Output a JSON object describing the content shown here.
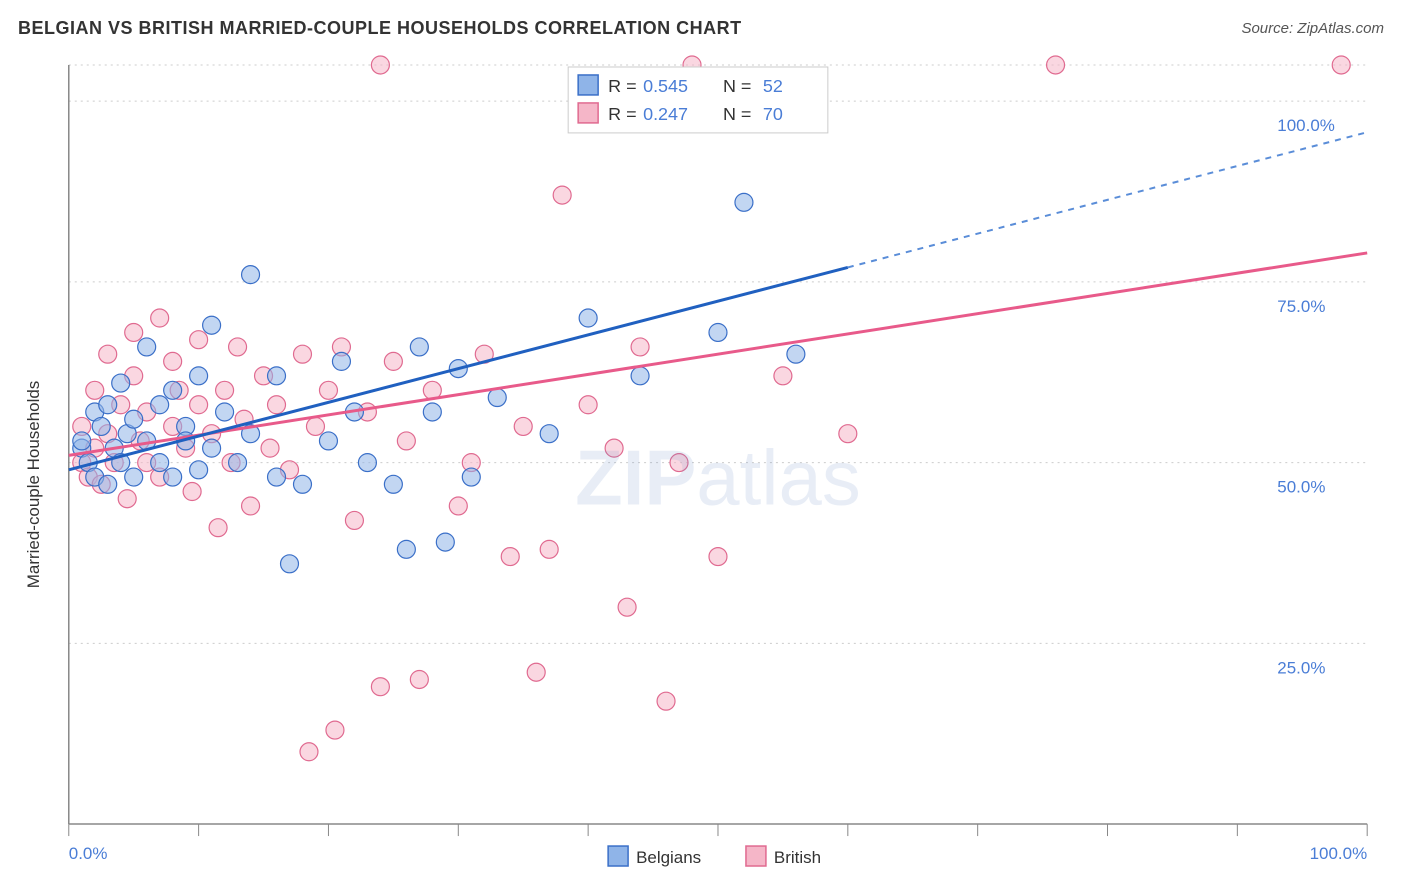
{
  "title": "BELGIAN VS BRITISH MARRIED-COUPLE HOUSEHOLDS CORRELATION CHART",
  "source": "Source: ZipAtlas.com",
  "y_axis_title": "Married-couple Households",
  "watermark": "ZIPatlas",
  "chart": {
    "type": "scatter-with-trend",
    "background_color": "#ffffff",
    "grid_color": "#cccccc",
    "axis_color": "#888888",
    "x_range": [
      0,
      100
    ],
    "y_range": [
      0,
      105
    ],
    "x_ticks": [
      0,
      10,
      20,
      30,
      40,
      50,
      60,
      70,
      80,
      90,
      100
    ],
    "x_tick_labels": {
      "0": "0.0%",
      "100": "100.0%"
    },
    "y_gridlines": [
      25,
      50,
      75,
      100,
      105
    ],
    "y_tick_labels": {
      "25": "25.0%",
      "50": "50.0%",
      "75": "75.0%",
      "100": "100.0%"
    },
    "tick_label_color": "#4a7dd6",
    "tick_label_fontsize": 17,
    "marker_radius": 9,
    "series": [
      {
        "name": "Belgians",
        "color_fill": "#8fb4e8",
        "color_stroke": "#3a6fc8",
        "trend_color": "#2060c0",
        "trend_dash_color": "#5a8dd8",
        "R": "0.545",
        "N": "52",
        "trend": {
          "x1": 0,
          "y1": 49,
          "x2": 60,
          "y2": 77,
          "x2_ext": 100,
          "y2_ext": 95.7
        },
        "points": [
          [
            1,
            52
          ],
          [
            1,
            53
          ],
          [
            1.5,
            50
          ],
          [
            2,
            48
          ],
          [
            2,
            57
          ],
          [
            2.5,
            55
          ],
          [
            3,
            47
          ],
          [
            3,
            58
          ],
          [
            3.5,
            52
          ],
          [
            4,
            50
          ],
          [
            4,
            61
          ],
          [
            4.5,
            54
          ],
          [
            5,
            48
          ],
          [
            5,
            56
          ],
          [
            6,
            53
          ],
          [
            6,
            66
          ],
          [
            7,
            50
          ],
          [
            7,
            58
          ],
          [
            8,
            60
          ],
          [
            8,
            48
          ],
          [
            9,
            55
          ],
          [
            9,
            53
          ],
          [
            10,
            49
          ],
          [
            10,
            62
          ],
          [
            11,
            69
          ],
          [
            11,
            52
          ],
          [
            12,
            57
          ],
          [
            13,
            50
          ],
          [
            14,
            76
          ],
          [
            14,
            54
          ],
          [
            16,
            48
          ],
          [
            16,
            62
          ],
          [
            17,
            36
          ],
          [
            18,
            47
          ],
          [
            20,
            53
          ],
          [
            21,
            64
          ],
          [
            22,
            57
          ],
          [
            23,
            50
          ],
          [
            25,
            47
          ],
          [
            26,
            38
          ],
          [
            27,
            66
          ],
          [
            28,
            57
          ],
          [
            29,
            39
          ],
          [
            30,
            63
          ],
          [
            31,
            48
          ],
          [
            33,
            59
          ],
          [
            37,
            54
          ],
          [
            40,
            70
          ],
          [
            44,
            62
          ],
          [
            50,
            68
          ],
          [
            52,
            86
          ],
          [
            56,
            65
          ]
        ]
      },
      {
        "name": "British",
        "color_fill": "#f5b6c8",
        "color_stroke": "#e06a90",
        "trend_color": "#e85a8a",
        "R": "0.247",
        "N": "70",
        "trend": {
          "x1": 0,
          "y1": 51,
          "x2": 100,
          "y2": 79
        },
        "points": [
          [
            1,
            55
          ],
          [
            1,
            50
          ],
          [
            1.5,
            48
          ],
          [
            2,
            60
          ],
          [
            2,
            52
          ],
          [
            2.5,
            47
          ],
          [
            3,
            65
          ],
          [
            3,
            54
          ],
          [
            3.5,
            50
          ],
          [
            4,
            58
          ],
          [
            4.5,
            45
          ],
          [
            5,
            62
          ],
          [
            5,
            68
          ],
          [
            5.5,
            53
          ],
          [
            6,
            50
          ],
          [
            6,
            57
          ],
          [
            7,
            70
          ],
          [
            7,
            48
          ],
          [
            8,
            55
          ],
          [
            8,
            64
          ],
          [
            8.5,
            60
          ],
          [
            9,
            52
          ],
          [
            9.5,
            46
          ],
          [
            10,
            58
          ],
          [
            10,
            67
          ],
          [
            11,
            54
          ],
          [
            11.5,
            41
          ],
          [
            12,
            60
          ],
          [
            12.5,
            50
          ],
          [
            13,
            66
          ],
          [
            13.5,
            56
          ],
          [
            14,
            44
          ],
          [
            15,
            62
          ],
          [
            15.5,
            52
          ],
          [
            16,
            58
          ],
          [
            17,
            49
          ],
          [
            18,
            65
          ],
          [
            18.5,
            10
          ],
          [
            19,
            55
          ],
          [
            20,
            60
          ],
          [
            20.5,
            13
          ],
          [
            21,
            66
          ],
          [
            22,
            42
          ],
          [
            23,
            57
          ],
          [
            24,
            19
          ],
          [
            25,
            64
          ],
          [
            26,
            53
          ],
          [
            27,
            20
          ],
          [
            28,
            60
          ],
          [
            30,
            44
          ],
          [
            31,
            50
          ],
          [
            32,
            65
          ],
          [
            34,
            37
          ],
          [
            35,
            55
          ],
          [
            36,
            21
          ],
          [
            37,
            38
          ],
          [
            38,
            87
          ],
          [
            40,
            58
          ],
          [
            42,
            52
          ],
          [
            43,
            30
          ],
          [
            44,
            66
          ],
          [
            46,
            17
          ],
          [
            47,
            50
          ],
          [
            48,
            105
          ],
          [
            50,
            37
          ],
          [
            55,
            62
          ],
          [
            60,
            54
          ],
          [
            76,
            105
          ],
          [
            98,
            105
          ],
          [
            24,
            105
          ]
        ]
      }
    ]
  },
  "legend_top": {
    "rows": [
      {
        "swatch_fill": "#8fb4e8",
        "swatch_stroke": "#3a6fc8",
        "r_label": "R =",
        "r_val": "0.545",
        "n_label": "N =",
        "n_val": "52"
      },
      {
        "swatch_fill": "#f5b6c8",
        "swatch_stroke": "#e06a90",
        "r_label": "R =",
        "r_val": "0.247",
        "n_label": "N =",
        "n_val": "70"
      }
    ]
  },
  "legend_bottom": [
    {
      "swatch_fill": "#8fb4e8",
      "swatch_stroke": "#3a6fc8",
      "label": "Belgians"
    },
    {
      "swatch_fill": "#f5b6c8",
      "swatch_stroke": "#e06a90",
      "label": "British"
    }
  ]
}
